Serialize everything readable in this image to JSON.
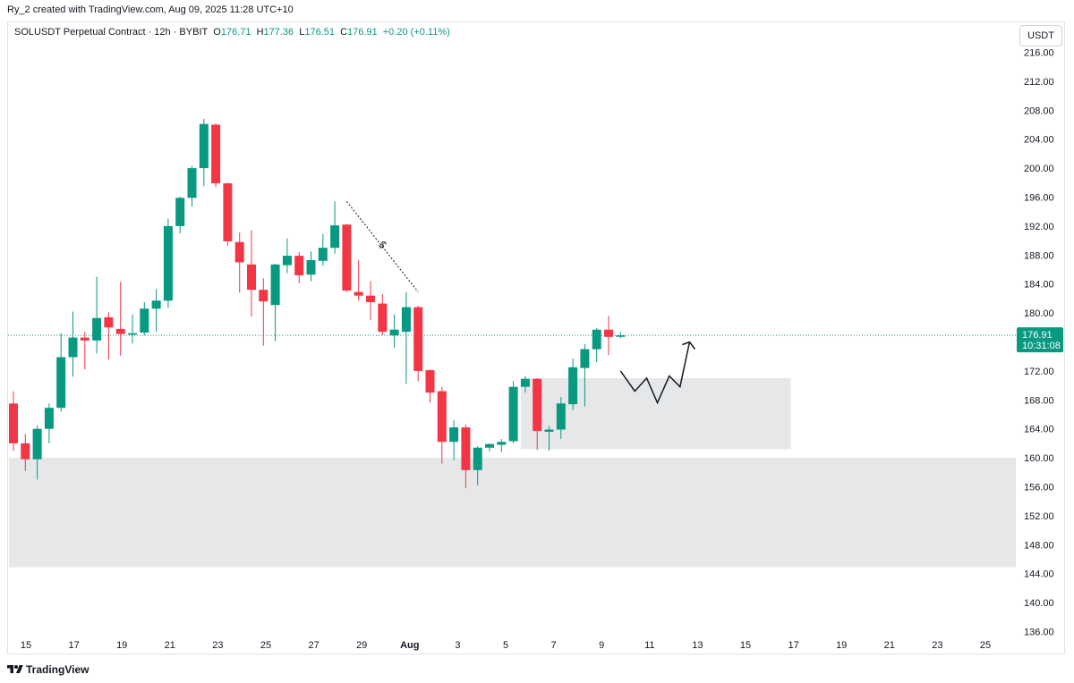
{
  "attribution": "Ry_2 created with TradingView.com, Aug 09, 2025 11:28 UTC+10",
  "legend": {
    "symbol": "SOLUSDT Perpetual Contract · 12h · BYBIT",
    "open_label": "O",
    "open": "176.71",
    "high_label": "H",
    "high": "177.36",
    "low_label": "L",
    "low": "176.51",
    "close_label": "C",
    "close": "176.91",
    "change": "+0.20 (+0.11%)"
  },
  "currency": "USDT",
  "price_tag": {
    "price": "176.91",
    "countdown": "10:31:08"
  },
  "footer": {
    "brand": "TradingView"
  },
  "colors": {
    "up": "#089981",
    "down": "#f23645",
    "zone": "#e6e7e9",
    "last_line": "#089981"
  },
  "chart_data": {
    "type": "candlestick",
    "symbol": "SOLUSDT",
    "interval": "12h",
    "exchange": "BYBIT",
    "ylim": [
      134,
      218
    ],
    "y_ticks": [
      "216.00",
      "212.00",
      "208.00",
      "204.00",
      "200.00",
      "196.00",
      "192.00",
      "188.00",
      "184.00",
      "180.00",
      "176.00",
      "172.00",
      "168.00",
      "164.00",
      "160.00",
      "156.00",
      "152.00",
      "148.00",
      "144.00",
      "140.00",
      "136.00"
    ],
    "x_ticks": [
      "15",
      "17",
      "19",
      "21",
      "23",
      "25",
      "27",
      "29",
      "Aug",
      "3",
      "5",
      "7",
      "9",
      "11",
      "13",
      "15",
      "17",
      "19",
      "21",
      "23",
      "25"
    ],
    "last_price": 176.91,
    "candles": [
      {
        "o": 167.5,
        "h": 169.2,
        "l": 161.0,
        "c": 162.0
      },
      {
        "o": 162.0,
        "h": 163.3,
        "l": 158.2,
        "c": 159.8
      },
      {
        "o": 159.8,
        "h": 164.5,
        "l": 157.0,
        "c": 164.0
      },
      {
        "o": 164.0,
        "h": 167.5,
        "l": 162.0,
        "c": 166.9
      },
      {
        "o": 166.9,
        "h": 177.2,
        "l": 166.4,
        "c": 173.9
      },
      {
        "o": 173.9,
        "h": 180.2,
        "l": 171.2,
        "c": 176.6
      },
      {
        "o": 176.6,
        "h": 177.4,
        "l": 172.2,
        "c": 176.2
      },
      {
        "o": 176.2,
        "h": 185.0,
        "l": 174.4,
        "c": 179.3
      },
      {
        "o": 179.4,
        "h": 180.1,
        "l": 173.6,
        "c": 178.0
      },
      {
        "o": 177.8,
        "h": 184.3,
        "l": 174.1,
        "c": 177.1
      },
      {
        "o": 177.0,
        "h": 179.8,
        "l": 175.8,
        "c": 177.2
      },
      {
        "o": 177.3,
        "h": 181.5,
        "l": 176.9,
        "c": 180.6
      },
      {
        "o": 180.6,
        "h": 183.3,
        "l": 177.4,
        "c": 181.7
      },
      {
        "o": 181.7,
        "h": 193.0,
        "l": 180.7,
        "c": 192.0
      },
      {
        "o": 192.0,
        "h": 196.1,
        "l": 191.0,
        "c": 195.9
      },
      {
        "o": 195.9,
        "h": 200.3,
        "l": 194.7,
        "c": 200.0
      },
      {
        "o": 200.0,
        "h": 206.8,
        "l": 197.5,
        "c": 206.1
      },
      {
        "o": 206.0,
        "h": 206.2,
        "l": 197.4,
        "c": 197.9
      },
      {
        "o": 197.9,
        "h": 198.0,
        "l": 189.3,
        "c": 189.9
      },
      {
        "o": 189.8,
        "h": 191.1,
        "l": 182.8,
        "c": 187.0
      },
      {
        "o": 186.7,
        "h": 191.4,
        "l": 179.5,
        "c": 183.2
      },
      {
        "o": 183.2,
        "h": 184.8,
        "l": 175.5,
        "c": 181.6
      },
      {
        "o": 181.1,
        "h": 186.8,
        "l": 176.1,
        "c": 186.7
      },
      {
        "o": 186.6,
        "h": 190.3,
        "l": 185.5,
        "c": 187.9
      },
      {
        "o": 187.9,
        "h": 188.4,
        "l": 184.1,
        "c": 185.2
      },
      {
        "o": 185.3,
        "h": 188.5,
        "l": 184.4,
        "c": 187.3
      },
      {
        "o": 187.2,
        "h": 190.9,
        "l": 186.5,
        "c": 189.0
      },
      {
        "o": 189.0,
        "h": 195.4,
        "l": 188.2,
        "c": 192.1
      },
      {
        "o": 192.2,
        "h": 192.3,
        "l": 182.9,
        "c": 183.1
      },
      {
        "o": 182.9,
        "h": 187.3,
        "l": 181.7,
        "c": 182.4
      },
      {
        "o": 182.4,
        "h": 184.4,
        "l": 179.0,
        "c": 181.5
      },
      {
        "o": 181.3,
        "h": 182.6,
        "l": 176.9,
        "c": 177.4
      },
      {
        "o": 176.9,
        "h": 179.8,
        "l": 175.2,
        "c": 177.7
      },
      {
        "o": 177.4,
        "h": 182.9,
        "l": 170.2,
        "c": 180.8
      },
      {
        "o": 180.8,
        "h": 181.0,
        "l": 170.6,
        "c": 172.0
      },
      {
        "o": 172.1,
        "h": 172.2,
        "l": 167.6,
        "c": 169.0
      },
      {
        "o": 169.2,
        "h": 169.8,
        "l": 159.2,
        "c": 162.2
      },
      {
        "o": 162.2,
        "h": 165.2,
        "l": 159.7,
        "c": 164.2
      },
      {
        "o": 164.2,
        "h": 164.6,
        "l": 155.8,
        "c": 158.3
      },
      {
        "o": 158.3,
        "h": 161.6,
        "l": 156.2,
        "c": 161.4
      },
      {
        "o": 161.4,
        "h": 162.0,
        "l": 160.9,
        "c": 161.9
      },
      {
        "o": 161.8,
        "h": 162.6,
        "l": 160.8,
        "c": 162.2
      },
      {
        "o": 162.3,
        "h": 170.6,
        "l": 162.0,
        "c": 169.8
      },
      {
        "o": 169.8,
        "h": 171.3,
        "l": 169.0,
        "c": 170.9
      },
      {
        "o": 170.9,
        "h": 171.0,
        "l": 161.1,
        "c": 163.7
      },
      {
        "o": 163.6,
        "h": 164.4,
        "l": 161.0,
        "c": 163.9
      },
      {
        "o": 163.9,
        "h": 168.4,
        "l": 162.6,
        "c": 167.5
      },
      {
        "o": 167.4,
        "h": 173.7,
        "l": 166.6,
        "c": 172.5
      },
      {
        "o": 172.4,
        "h": 175.7,
        "l": 167.1,
        "c": 175.0
      },
      {
        "o": 175.0,
        "h": 177.9,
        "l": 173.2,
        "c": 177.7
      },
      {
        "o": 177.7,
        "h": 179.6,
        "l": 174.2,
        "c": 176.7
      },
      {
        "o": 176.71,
        "h": 177.36,
        "l": 176.51,
        "c": 176.91
      }
    ],
    "zones": [
      {
        "from_index": 43,
        "to_index": 65,
        "top": 171.0,
        "bottom": 161.2
      },
      {
        "from_index": 0,
        "to_index": 100,
        "top": 160.0,
        "bottom": 144.9
      }
    ],
    "trendline": {
      "from_index": 28,
      "from_price": 195.4,
      "to_index": 34,
      "to_price": 182.9
    },
    "projection": [
      {
        "i": 51,
        "p": 172.0
      },
      {
        "i": 52.2,
        "p": 169.2
      },
      {
        "i": 53.2,
        "p": 171.0
      },
      {
        "i": 54.1,
        "p": 167.6
      },
      {
        "i": 55.1,
        "p": 171.3
      },
      {
        "i": 56.0,
        "p": 169.8
      },
      {
        "i": 56.8,
        "p": 176.0
      }
    ]
  }
}
